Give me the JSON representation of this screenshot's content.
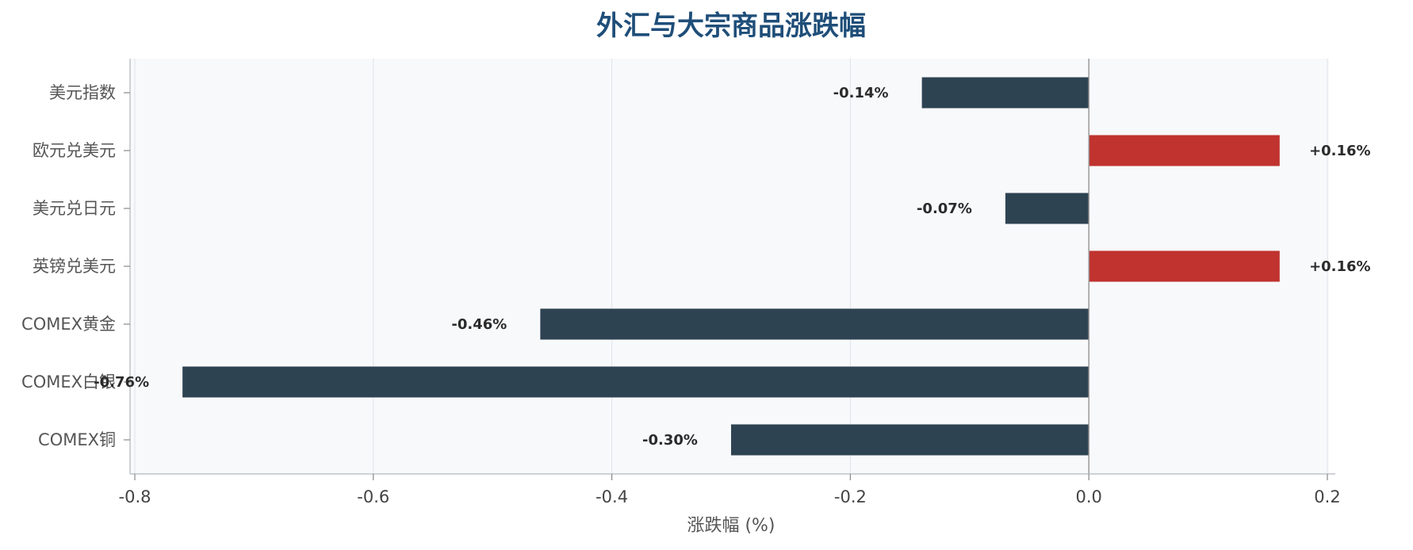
{
  "chart_data": {
    "type": "bar",
    "orientation": "horizontal",
    "title": "外汇与大宗商品涨跌幅",
    "xlabel": "涨跌幅 (%)",
    "ylabel": "",
    "xlim": [
      -0.8,
      0.2
    ],
    "xticks": [
      -0.8,
      -0.6,
      -0.4,
      -0.2,
      0.0,
      0.2
    ],
    "xtick_labels": [
      "-0.8",
      "-0.6",
      "-0.4",
      "-0.2",
      "0.0",
      "0.2"
    ],
    "grid": "vertical",
    "categories": [
      "美元指数",
      "欧元兑美元",
      "美元兑日元",
      "英镑兑美元",
      "COMEX黄金",
      "COMEX白银",
      "COMEX铜"
    ],
    "values": [
      -0.14,
      0.16,
      -0.07,
      0.16,
      -0.46,
      -0.76,
      -0.3
    ],
    "data_labels": [
      "-0.14%",
      "+0.16%",
      "-0.07%",
      "+0.16%",
      "-0.46%",
      "-0.76%",
      "-0.30%"
    ],
    "colors": {
      "positive": "#c0332f",
      "negative": "#2e4352",
      "plot_background": "#f8f9fb",
      "grid": "#dfe3e8",
      "title": "#1f4e79"
    }
  }
}
